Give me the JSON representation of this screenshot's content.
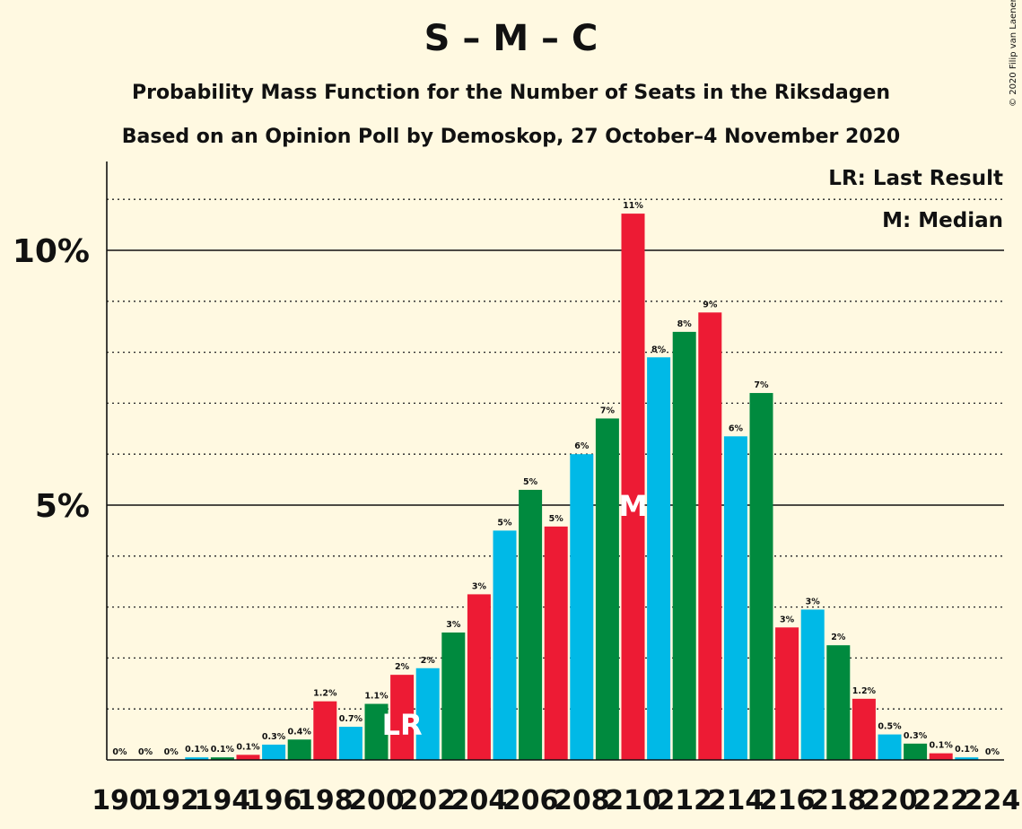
{
  "title": "S – M – C",
  "subtitle": "Probability Mass Function for the Number of Seats in the Riksdagen",
  "subtitle2": "Based on an Opinion Poll by Demoskop, 27 October–4 November 2020",
  "legend": {
    "last_result": "LR: Last Result",
    "median": "M: Median"
  },
  "credit": "© 2020 Filip van Laenen",
  "colors": {
    "red": "#ED1B34",
    "blue": "#00B9E7",
    "green": "#008A3E",
    "background": "#FFF9E1"
  },
  "chart_data": {
    "type": "bar",
    "xlabel": "",
    "ylabel": "",
    "ylim": [
      0,
      11.7
    ],
    "y_ticks": [
      {
        "value": 5,
        "label": "5%"
      },
      {
        "value": 10,
        "label": "10%"
      }
    ],
    "x_tick_labels": [
      "190",
      "192",
      "194",
      "196",
      "198",
      "200",
      "202",
      "204",
      "206",
      "208",
      "210",
      "212",
      "214",
      "216",
      "218",
      "220",
      "222",
      "224"
    ],
    "categories": [
      190,
      191,
      192,
      193,
      194,
      195,
      196,
      197,
      198,
      199,
      200,
      201,
      202,
      203,
      204,
      205,
      206,
      207,
      208,
      209,
      210,
      211,
      212,
      213,
      214,
      215,
      216,
      217,
      218,
      219,
      220,
      221,
      222,
      223,
      224
    ],
    "values": [
      0,
      0,
      0,
      0.05,
      0.05,
      0.1,
      0.3,
      0.4,
      1.15,
      0.65,
      1.1,
      1.67,
      1.8,
      2.5,
      3.25,
      4.5,
      5.3,
      4.58,
      6.0,
      6.7,
      10.72,
      7.9,
      8.4,
      8.78,
      6.35,
      7.2,
      2.6,
      2.95,
      2.25,
      1.2,
      0.5,
      0.32,
      0.13,
      0.05,
      0
    ],
    "value_labels": [
      "0%",
      "0%",
      "0%",
      "0.1%",
      "0.1%",
      "0.1%",
      "0.3%",
      "0.4%",
      "1.2%",
      "0.7%",
      "1.1%",
      "2%",
      "2%",
      "3%",
      "3%",
      "5%",
      "5%",
      "5%",
      "6%",
      "7%",
      "11%",
      "8%",
      "8%",
      "9%",
      "6%",
      "7%",
      "3%",
      "3%",
      "2%",
      "1.2%",
      "0.5%",
      "0.3%",
      "0.1%",
      "0.1%",
      "0%"
    ],
    "bar_colors": [
      "red",
      "blue",
      "green",
      "blue",
      "green",
      "red",
      "blue",
      "green",
      "red",
      "blue",
      "green",
      "red",
      "blue",
      "green",
      "red",
      "blue",
      "green",
      "red",
      "blue",
      "green",
      "red",
      "blue",
      "green",
      "red",
      "blue",
      "green",
      "red",
      "blue",
      "green",
      "red",
      "blue",
      "green",
      "red",
      "blue",
      "green"
    ],
    "markers": [
      {
        "category": 201,
        "label": "LR"
      },
      {
        "category": 210,
        "label": "M"
      }
    ],
    "grid": "dotted-every-1%"
  }
}
